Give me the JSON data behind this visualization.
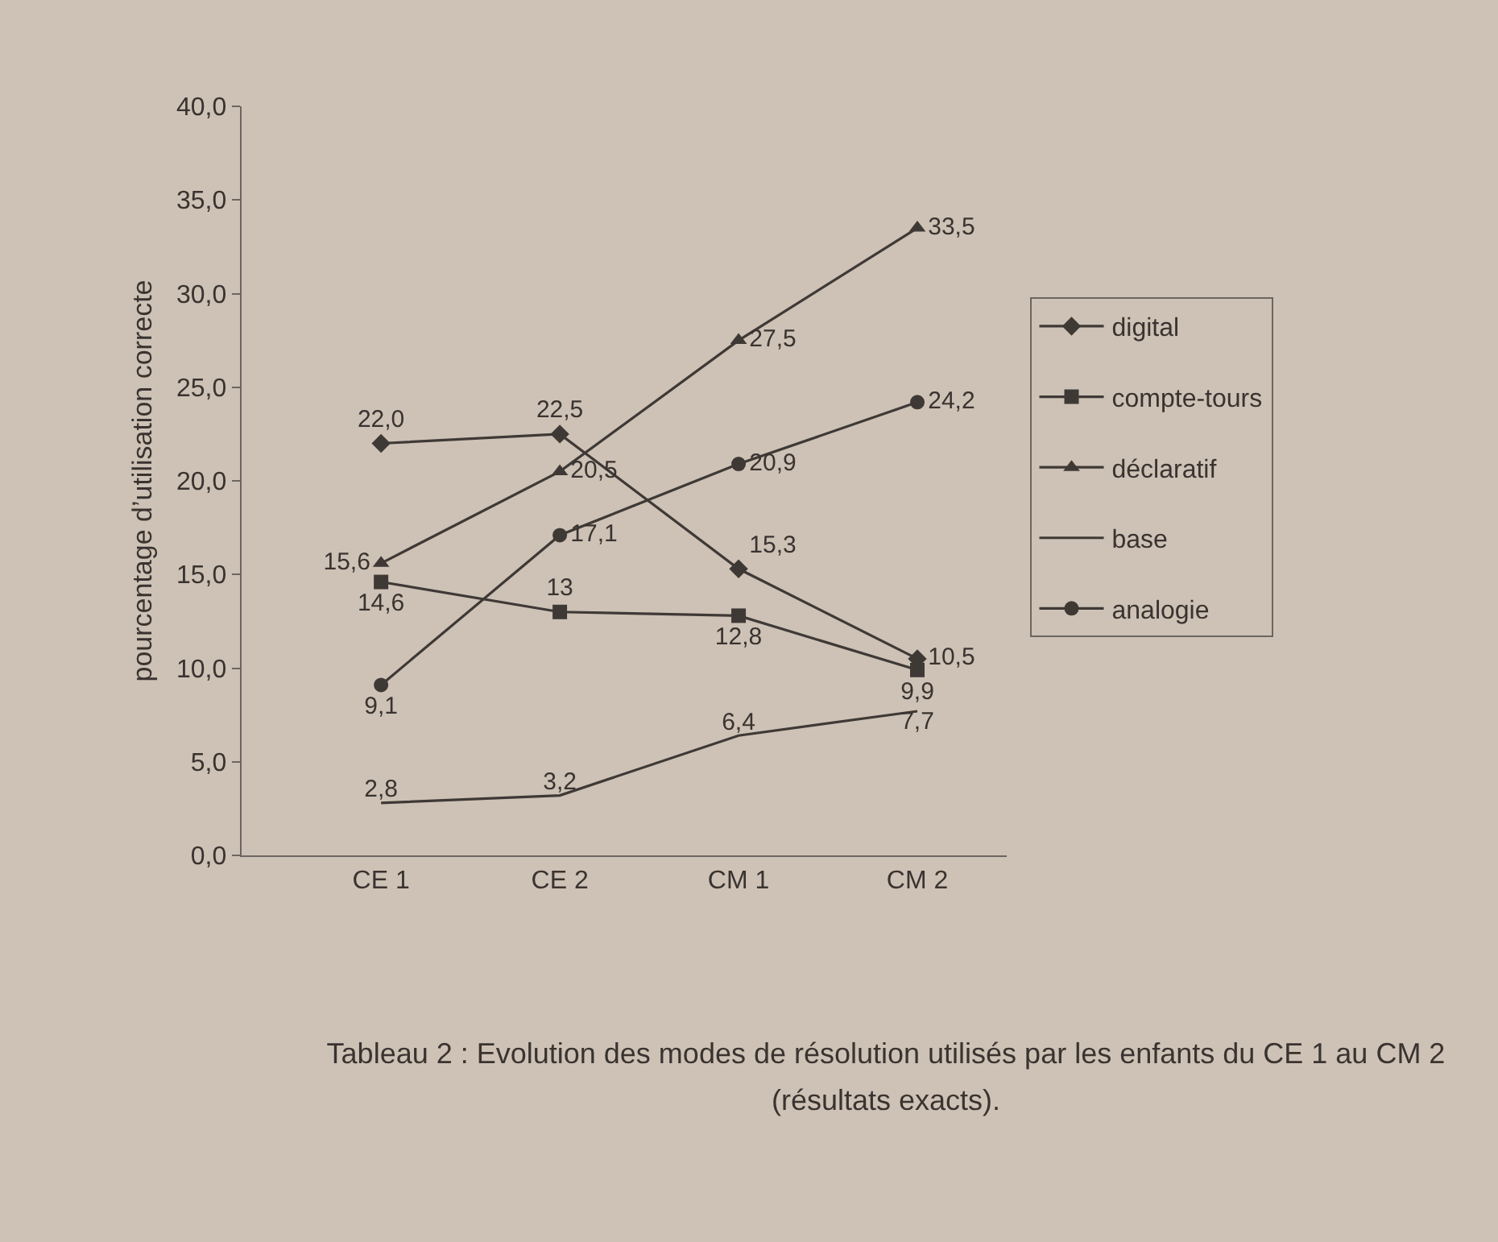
{
  "chart_data": {
    "type": "line",
    "categories": [
      "CE 1",
      "CE 2",
      "CM 1",
      "CM 2"
    ],
    "ylabel": "pourcentage d’utilisation correcte",
    "ylim": [
      0,
      40
    ],
    "yticks": [
      {
        "value": 0,
        "label": "0,0"
      },
      {
        "value": 5,
        "label": "5,0"
      },
      {
        "value": 10,
        "label": "10,0"
      },
      {
        "value": 15,
        "label": "15,0"
      },
      {
        "value": 20,
        "label": "20,0"
      },
      {
        "value": 25,
        "label": "25,0"
      },
      {
        "value": 30,
        "label": "30,0"
      },
      {
        "value": 35,
        "label": "35,0"
      },
      {
        "value": 40,
        "label": "40,0"
      }
    ],
    "grid": false,
    "legend": "right",
    "line_style": "solid",
    "series": [
      {
        "name": "digital",
        "color": "#3f3936",
        "marker": "diamond",
        "values": [
          22.0,
          22.5,
          15.3,
          10.5
        ],
        "value_labels": [
          "22,0",
          "22,5",
          "15,3",
          "10,5"
        ]
      },
      {
        "name": "compte-tours",
        "color": "#3f3936",
        "marker": "square",
        "values": [
          14.6,
          13,
          12.8,
          9.9
        ],
        "value_labels": [
          "14,6",
          "13",
          "12,8",
          "9,9"
        ]
      },
      {
        "name": "déclaratif",
        "color": "#3f3936",
        "marker": "triangle",
        "values": [
          15.6,
          20.5,
          27.5,
          33.5
        ],
        "value_labels": [
          "15,6",
          "20,5",
          "27,5",
          "33,5"
        ]
      },
      {
        "name": "base",
        "color": "#3f3936",
        "marker": "none",
        "values": [
          2.8,
          3.2,
          6.4,
          7.7
        ],
        "value_labels": [
          "2,8",
          "3,2",
          "6,4",
          "7,7"
        ]
      },
      {
        "name": "analogie",
        "color": "#3f3936",
        "marker": "circle",
        "values": [
          9.1,
          17.1,
          20.9,
          24.2
        ],
        "value_labels": [
          "9,1",
          "17,1",
          "20,9",
          "24,2"
        ]
      }
    ],
    "annotations": [
      "Tableau 2 : Evolution des modes de résolution utilisés par les enfants du CE 1 au CM 2 (résultats exacts)."
    ]
  }
}
